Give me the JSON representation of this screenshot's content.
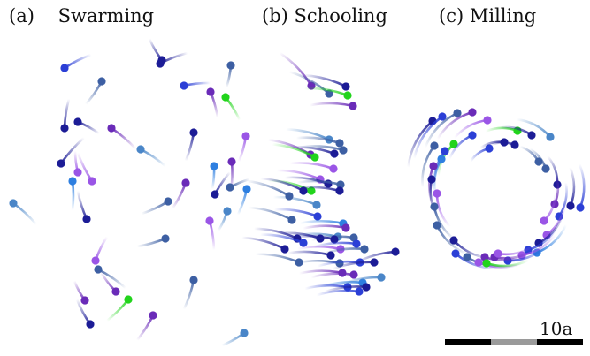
{
  "panels": [
    {
      "letter": "(a)",
      "title": "Swarming",
      "state": "swarming"
    },
    {
      "letter": "(b)",
      "title": "Schooling",
      "state": "schooling"
    },
    {
      "letter": "(c)",
      "title": "Milling",
      "state": "milling"
    }
  ],
  "scale_bar": {
    "label": "10a",
    "colors": [
      "#000000",
      "#9a9a9a",
      "#000000"
    ]
  },
  "palette": {
    "navy": "#1c1c96",
    "blue": "#2b3fd6",
    "purple": "#6a2bb8",
    "violet": "#9a55e6",
    "slate": "#3d5fa3",
    "steel": "#4a86c8",
    "azure": "#2e7fe0",
    "green": "#22d41c"
  }
}
